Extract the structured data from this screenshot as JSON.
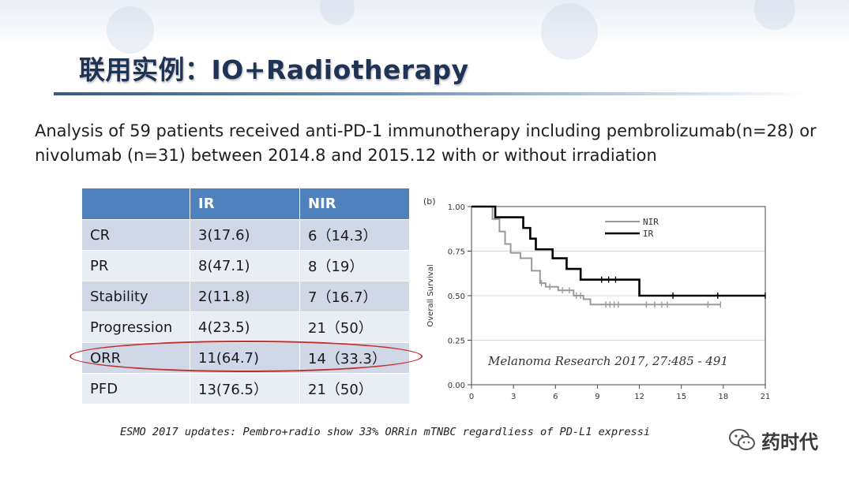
{
  "slide": {
    "title": "联用实例：IO+Radiotherapy",
    "description_lines": [
      "Analysis of 59 patients received anti-PD-1 immunotherapy including pembrolizumab(n=28) or",
      "nivolumab (n=31) between 2014.8 and 2015.12 with or without irradiation"
    ]
  },
  "table": {
    "headers": [
      "",
      "IR",
      "NIR"
    ],
    "rows": [
      [
        "CR",
        "3(17.6)",
        "6（14.3）"
      ],
      [
        "PR",
        "8(47.1)",
        "8（19）"
      ],
      [
        "Stability",
        "2(11.8)",
        "7（16.7）"
      ],
      [
        "Progression",
        "4(23.5)",
        "21（50）"
      ],
      [
        "ORR",
        "11(64.7)",
        "14（33.3）"
      ],
      [
        "PFD",
        "13(76.5）",
        "21（50）"
      ]
    ],
    "highlighted_row": "ORR",
    "highlight_color": "#c0302e",
    "header_color": "#4f81bd",
    "row_colors": [
      "#d0d8e8",
      "#e9edf4"
    ]
  },
  "chart_data": {
    "type": "line",
    "panel_label": "(b)",
    "ylabel": "Overall Survival",
    "xlabel": "",
    "xlim": [
      0,
      21
    ],
    "ylim": [
      0,
      1
    ],
    "x_ticks": [
      "0",
      "3",
      "6",
      "9",
      "12",
      "15",
      "18",
      "21"
    ],
    "y_ticks": [
      "0.00",
      "0.25",
      "0.50",
      "0.75",
      "1.00"
    ],
    "grid": true,
    "legend_position": "top-right",
    "series": [
      {
        "name": "NIR",
        "color": "#9a9a9a",
        "steps": [
          [
            0,
            1.0
          ],
          [
            1.5,
            0.93
          ],
          [
            2.0,
            0.86
          ],
          [
            2.4,
            0.79
          ],
          [
            2.8,
            0.74
          ],
          [
            3.5,
            0.71
          ],
          [
            4.3,
            0.64
          ],
          [
            4.9,
            0.57
          ],
          [
            5.3,
            0.55
          ],
          [
            6.2,
            0.53
          ],
          [
            7.3,
            0.5
          ],
          [
            8.0,
            0.48
          ],
          [
            8.5,
            0.45
          ],
          [
            17.8,
            0.45
          ]
        ],
        "censored": [
          5.0,
          5.6,
          6.5,
          7.0,
          7.5,
          7.8,
          9.6,
          9.9,
          10.2,
          10.5,
          12.5,
          13.1,
          13.6,
          14.0,
          16.9,
          17.8
        ]
      },
      {
        "name": "IR",
        "color": "#000000",
        "steps": [
          [
            0,
            1.0
          ],
          [
            1.7,
            0.94
          ],
          [
            3.7,
            0.88
          ],
          [
            4.2,
            0.82
          ],
          [
            4.6,
            0.76
          ],
          [
            5.8,
            0.71
          ],
          [
            6.8,
            0.65
          ],
          [
            7.8,
            0.59
          ],
          [
            12.0,
            0.5
          ],
          [
            21.0,
            0.5
          ]
        ],
        "censored": [
          9.3,
          9.8,
          10.3,
          14.4,
          17.6,
          21.0
        ]
      }
    ]
  },
  "citation": "Melanoma Research 2017, 27:485 - 491",
  "footer_note": "ESMO 2017 updates: Pembro+radio show 33% ORRin mTNBC regardliess of PD-L1 expressi",
  "brand": {
    "icon": "wechat-icon",
    "name": "药时代"
  }
}
